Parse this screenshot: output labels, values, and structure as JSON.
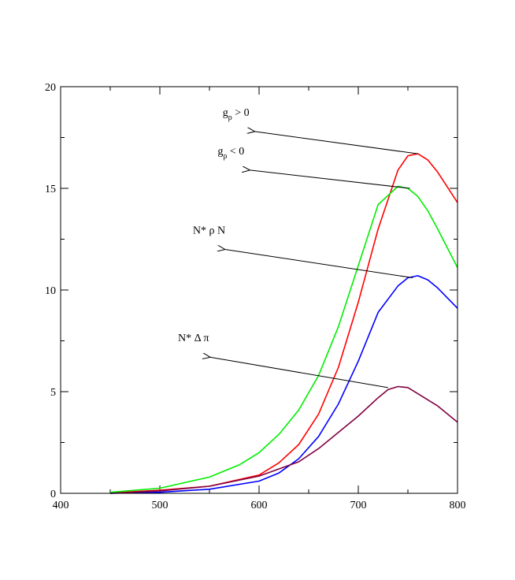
{
  "chart_data": {
    "type": "line",
    "title": "",
    "xlabel": "",
    "ylabel": "",
    "xlim": [
      400,
      800
    ],
    "ylim": [
      0,
      20
    ],
    "xticks": [
      400,
      500,
      600,
      700,
      800
    ],
    "yticks": [
      0,
      5,
      10,
      15,
      20
    ],
    "xtick_labels": [
      "400",
      "500",
      "600",
      "700",
      "800"
    ],
    "ytick_labels": [
      "0",
      "5",
      "10",
      "15",
      "20"
    ],
    "grid": false,
    "colors": {
      "red": "#ff0000",
      "green": "#00ee00",
      "blue": "#0000ff",
      "maroon": "#800040"
    },
    "series": [
      {
        "color": "#ff0000",
        "x": [
          450,
          500,
          550,
          600,
          620,
          640,
          660,
          680,
          700,
          720,
          740,
          750,
          760,
          770,
          780,
          800
        ],
        "y": [
          0.02,
          0.15,
          0.35,
          0.9,
          1.5,
          2.4,
          3.9,
          6.2,
          9.4,
          13.0,
          15.9,
          16.6,
          16.7,
          16.4,
          15.8,
          14.3
        ]
      },
      {
        "color": "#00ee00",
        "x": [
          450,
          500,
          550,
          580,
          600,
          620,
          640,
          660,
          680,
          700,
          720,
          740,
          750,
          760,
          770,
          780,
          800
        ],
        "y": [
          0.05,
          0.25,
          0.8,
          1.4,
          2.0,
          2.9,
          4.1,
          5.8,
          8.2,
          11.2,
          14.2,
          15.1,
          15.0,
          14.6,
          13.9,
          13.0,
          11.1
        ]
      },
      {
        "color": "#0000ff",
        "x": [
          450,
          500,
          550,
          600,
          620,
          640,
          660,
          680,
          700,
          720,
          740,
          750,
          760,
          770,
          780,
          800
        ],
        "y": [
          0.0,
          0.05,
          0.2,
          0.6,
          1.0,
          1.7,
          2.8,
          4.4,
          6.5,
          8.9,
          10.2,
          10.6,
          10.7,
          10.5,
          10.1,
          9.1
        ]
      },
      {
        "color": "#800040",
        "x": [
          450,
          500,
          550,
          600,
          640,
          660,
          680,
          700,
          720,
          730,
          740,
          750,
          760,
          780,
          800
        ],
        "y": [
          0.0,
          0.12,
          0.35,
          0.85,
          1.55,
          2.2,
          3.0,
          3.8,
          4.7,
          5.1,
          5.25,
          5.2,
          4.9,
          4.3,
          3.5
        ]
      }
    ],
    "annotations": [
      {
        "text_main": "g",
        "text_sub": "ρ",
        "text_rest": " > 0",
        "arrow_to": [
          595,
          17.8
        ],
        "arrow_from": [
          760,
          16.7
        ]
      },
      {
        "text_main": "g",
        "text_sub": "ρ",
        "text_rest": " < 0",
        "arrow_to": [
          590,
          15.9
        ],
        "arrow_from": [
          752,
          15.0
        ]
      },
      {
        "text_main": "N* ρ  N",
        "text_sub": "",
        "text_rest": "",
        "arrow_to": [
          565,
          12.0
        ],
        "arrow_from": [
          755,
          10.6
        ]
      },
      {
        "text_main": "N* Δ π",
        "text_sub": "",
        "text_rest": "",
        "arrow_to": [
          550,
          6.7
        ],
        "arrow_from": [
          730,
          5.2
        ]
      }
    ]
  }
}
